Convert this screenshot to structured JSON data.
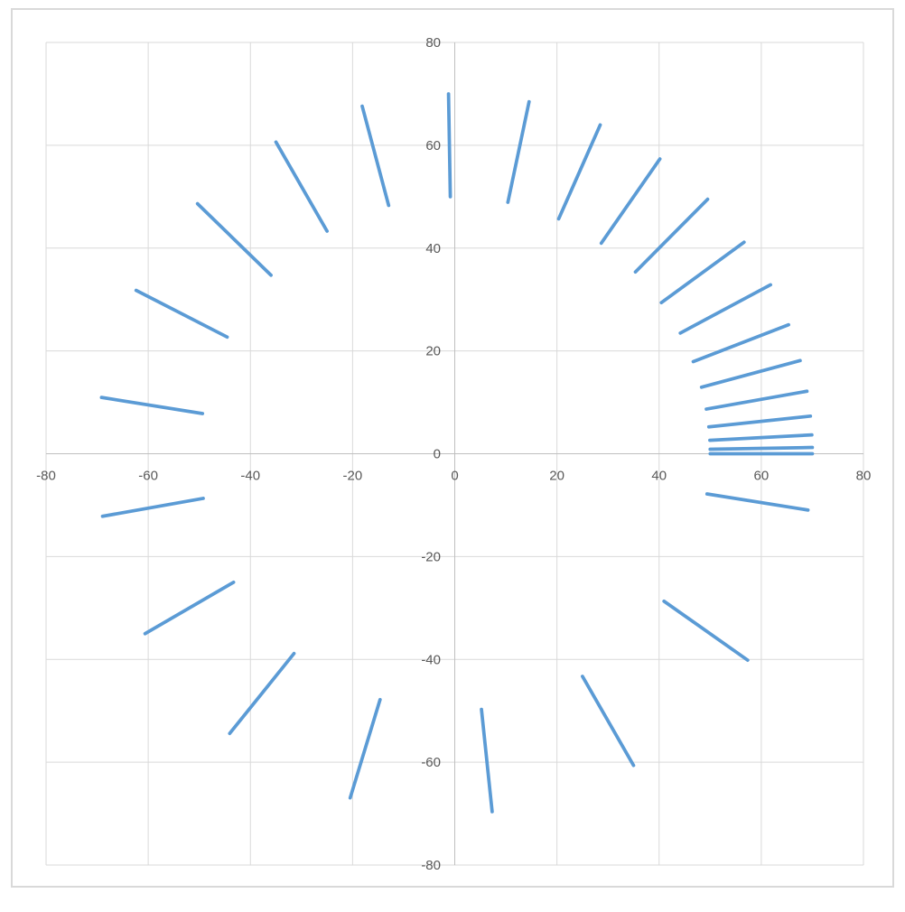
{
  "window": {
    "background_color": "#FFFFFF",
    "chart_border_color": "#D9D9D9"
  },
  "chart_data": {
    "type": "scatter",
    "subtype": "straight-line-segments-no-markers",
    "title": "",
    "xlabel": "",
    "ylabel": "",
    "xlim": [
      -80,
      80
    ],
    "ylim": [
      -80,
      80
    ],
    "x_ticks": [
      -80,
      -60,
      -40,
      -20,
      0,
      20,
      40,
      60,
      80
    ],
    "y_ticks": [
      -80,
      -60,
      -40,
      -20,
      0,
      20,
      40,
      60,
      80
    ],
    "grid": true,
    "legend": false,
    "series_color": "#5B9BD5",
    "series_line_width": 3.75,
    "gridline_color": "#D9D9D9",
    "axis_line_color": "#BFBFBF",
    "tick_label_color": "#595959",
    "description": "27 radial line segments from radius 50 to radius 70, at angles equal to triangular numbers k(k+1)/2 degrees for k = 0..26; segments cluster densely near angle 0 and spread counterclockwise around the circle.",
    "inner_radius": 50,
    "outer_radius": 70,
    "segments": [
      {
        "angle_deg": 0,
        "x1": 50.0,
        "y1": 0.0,
        "x2": 70.0,
        "y2": 0.0
      },
      {
        "angle_deg": 1,
        "x1": 49.99,
        "y1": 0.87,
        "x2": 69.99,
        "y2": 1.22
      },
      {
        "angle_deg": 3,
        "x1": 49.93,
        "y1": 2.62,
        "x2": 69.9,
        "y2": 3.66
      },
      {
        "angle_deg": 6,
        "x1": 49.73,
        "y1": 5.23,
        "x2": 69.62,
        "y2": 7.32
      },
      {
        "angle_deg": 10,
        "x1": 49.24,
        "y1": 8.68,
        "x2": 68.94,
        "y2": 12.16
      },
      {
        "angle_deg": 15,
        "x1": 48.3,
        "y1": 12.94,
        "x2": 67.61,
        "y2": 18.12
      },
      {
        "angle_deg": 21,
        "x1": 46.68,
        "y1": 17.92,
        "x2": 65.35,
        "y2": 25.09
      },
      {
        "angle_deg": 28,
        "x1": 44.15,
        "y1": 23.47,
        "x2": 61.81,
        "y2": 32.86
      },
      {
        "angle_deg": 36,
        "x1": 40.45,
        "y1": 29.39,
        "x2": 56.63,
        "y2": 41.15
      },
      {
        "angle_deg": 45,
        "x1": 35.36,
        "y1": 35.36,
        "x2": 49.5,
        "y2": 49.5
      },
      {
        "angle_deg": 55,
        "x1": 28.68,
        "y1": 40.96,
        "x2": 40.15,
        "y2": 57.34
      },
      {
        "angle_deg": 66,
        "x1": 20.34,
        "y1": 45.68,
        "x2": 28.47,
        "y2": 63.95
      },
      {
        "angle_deg": 78,
        "x1": 10.4,
        "y1": 48.91,
        "x2": 14.55,
        "y2": 68.47
      },
      {
        "angle_deg": 91,
        "x1": -0.87,
        "y1": 49.99,
        "x2": -1.22,
        "y2": 69.99
      },
      {
        "angle_deg": 105,
        "x1": -12.94,
        "y1": 48.3,
        "x2": -18.12,
        "y2": 67.61
      },
      {
        "angle_deg": 120,
        "x1": -25.0,
        "y1": 43.3,
        "x2": -35.0,
        "y2": 60.62
      },
      {
        "angle_deg": 136,
        "x1": -35.97,
        "y1": 34.73,
        "x2": -50.35,
        "y2": 48.63
      },
      {
        "angle_deg": 153,
        "x1": -44.55,
        "y1": 22.7,
        "x2": -62.37,
        "y2": 31.78
      },
      {
        "angle_deg": 171,
        "x1": -49.38,
        "y1": 7.82,
        "x2": -69.14,
        "y2": 10.95
      },
      {
        "angle_deg": 190,
        "x1": -49.24,
        "y1": -8.68,
        "x2": -68.94,
        "y2": -12.16
      },
      {
        "angle_deg": 210,
        "x1": -43.3,
        "y1": -25.0,
        "x2": -60.62,
        "y2": -35.0
      },
      {
        "angle_deg": 231,
        "x1": -31.47,
        "y1": -38.86,
        "x2": -44.05,
        "y2": -54.4
      },
      {
        "angle_deg": 253,
        "x1": -14.62,
        "y1": -47.82,
        "x2": -20.47,
        "y2": -66.94
      },
      {
        "angle_deg": 276,
        "x1": 5.23,
        "y1": -49.73,
        "x2": 7.32,
        "y2": -69.62
      },
      {
        "angle_deg": 300,
        "x1": 25.0,
        "y1": -43.3,
        "x2": 35.0,
        "y2": -60.62
      },
      {
        "angle_deg": 325,
        "x1": 40.96,
        "y1": -28.68,
        "x2": 57.34,
        "y2": -40.15
      },
      {
        "angle_deg": 351,
        "x1": 49.38,
        "y1": -7.82,
        "x2": 69.14,
        "y2": -10.95
      }
    ]
  }
}
